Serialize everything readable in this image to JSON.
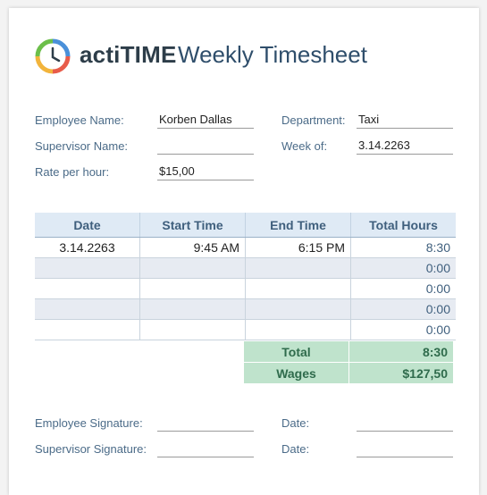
{
  "header": {
    "brand": "actiTIME",
    "title": "Weekly Timesheet",
    "logo_icon": "clock-icon"
  },
  "fields": {
    "employee_name_label": "Employee Name:",
    "employee_name": "Korben Dallas",
    "supervisor_name_label": "Supervisor Name:",
    "supervisor_name": "",
    "rate_label": "Rate per hour:",
    "rate": "$15,00",
    "department_label": "Department:",
    "department": "Taxi",
    "week_label": "Week of:",
    "week": "3.14.2263"
  },
  "table": {
    "headers": [
      "Date",
      "Start Time",
      "End Time",
      "Total Hours"
    ],
    "rows": [
      [
        "3.14.2263",
        "9:45 AM",
        "6:15 PM",
        "8:30"
      ],
      [
        "",
        "",
        "",
        "0:00"
      ],
      [
        "",
        "",
        "",
        "0:00"
      ],
      [
        "",
        "",
        "",
        "0:00"
      ],
      [
        "",
        "",
        "",
        "0:00"
      ]
    ],
    "total_label": "Total",
    "total_value": "8:30",
    "wages_label": "Wages",
    "wages_value": "$127,50"
  },
  "signatures": {
    "employee_label": "Employee Signature:",
    "supervisor_label": "Supervisor Signature:",
    "date_label": "Date:"
  },
  "colors": {
    "header_fill": "#dfeaf5",
    "summary_fill": "#bfe3cc",
    "label_blue": "#4b6b88"
  }
}
